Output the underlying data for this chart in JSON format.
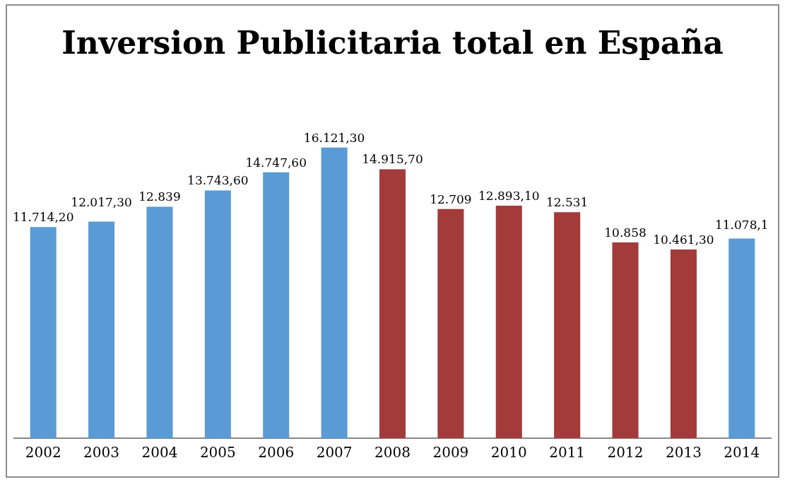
{
  "chart_data": {
    "type": "bar",
    "title": "Inversion Publicitaria total en España",
    "categories": [
      "2002",
      "2003",
      "2004",
      "2005",
      "2006",
      "2007",
      "2008",
      "2009",
      "2010",
      "2011",
      "2012",
      "2013",
      "2014"
    ],
    "values": [
      11714.2,
      12017.3,
      12839,
      13743.6,
      14747.6,
      16121.3,
      14915.7,
      12709,
      12893.1,
      12531,
      10858,
      10461.3,
      11078.1
    ],
    "colors": [
      "#5b9bd5",
      "#5b9bd5",
      "#5b9bd5",
      "#5b9bd5",
      "#5b9bd5",
      "#5b9bd5",
      "#a33b3b",
      "#a33b3b",
      "#a33b3b",
      "#a33b3b",
      "#a33b3b",
      "#a33b3b",
      "#5b9bd5"
    ],
    "value_labels": [
      "11.714,20",
      "12.017,30",
      "12.839",
      "13.743,60",
      "14.747,60",
      "16.121,30",
      "14.915,70",
      "12.709",
      "12.893,10",
      "12.531",
      "10.858",
      "10.461,30",
      "11.078,1"
    ],
    "tick_labels": "x",
    "grid": false,
    "legend": false
  }
}
